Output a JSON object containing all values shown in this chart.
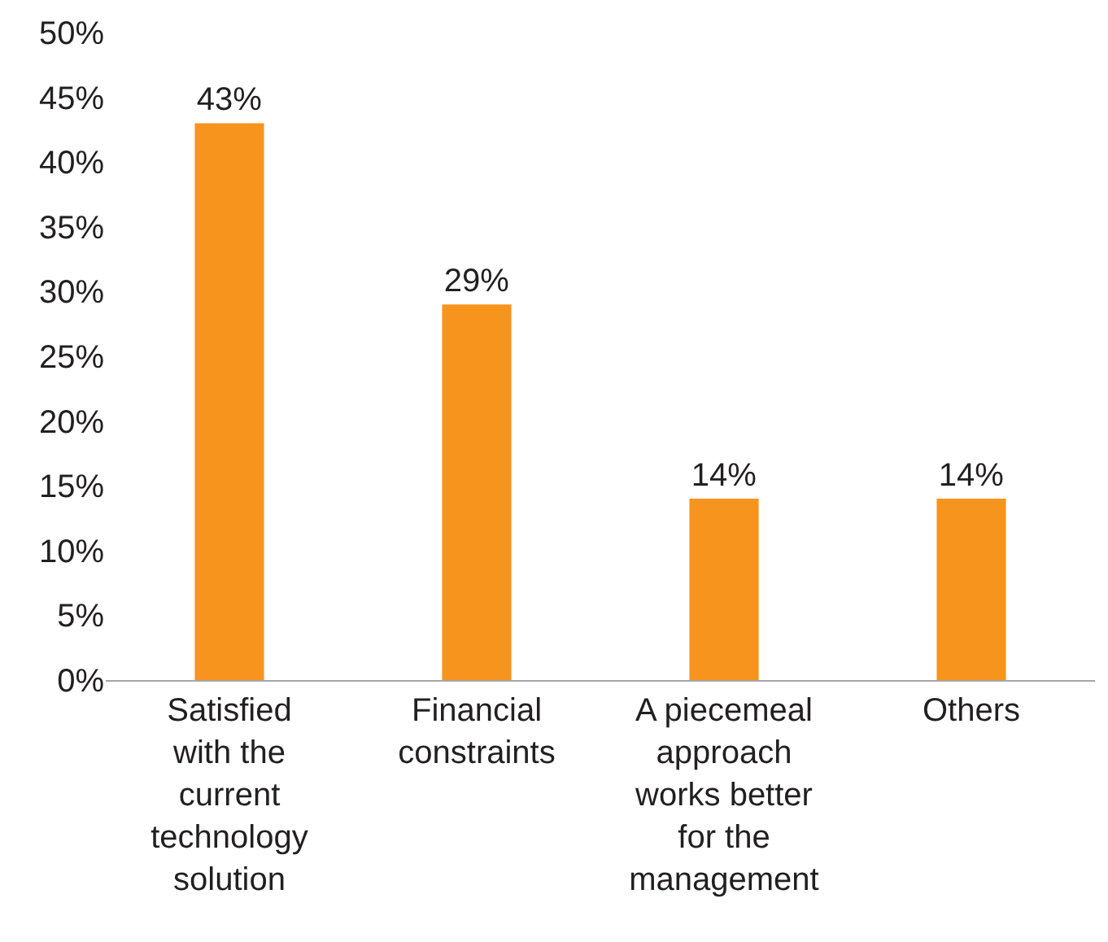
{
  "chart_data": {
    "type": "bar",
    "categories": [
      "Satisfied with the current technology solution",
      "Financial constraints",
      "A piecemeal approach works better for the management",
      "Others"
    ],
    "values": [
      43,
      29,
      14,
      14
    ],
    "value_labels": [
      "43%",
      "29%",
      "14%",
      "14%"
    ],
    "color": "#f7941d",
    "ylim": [
      0,
      50
    ],
    "yticks": [
      {
        "value": 0,
        "label": "0%"
      },
      {
        "value": 5,
        "label": "5%"
      },
      {
        "value": 10,
        "label": "10%"
      },
      {
        "value": 15,
        "label": "15%"
      },
      {
        "value": 20,
        "label": "20%"
      },
      {
        "value": 25,
        "label": "25%"
      },
      {
        "value": 30,
        "label": "30%"
      },
      {
        "value": 35,
        "label": "35%"
      },
      {
        "value": 40,
        "label": "40%"
      },
      {
        "value": 45,
        "label": "45%"
      },
      {
        "value": 50,
        "label": "50%"
      }
    ]
  }
}
